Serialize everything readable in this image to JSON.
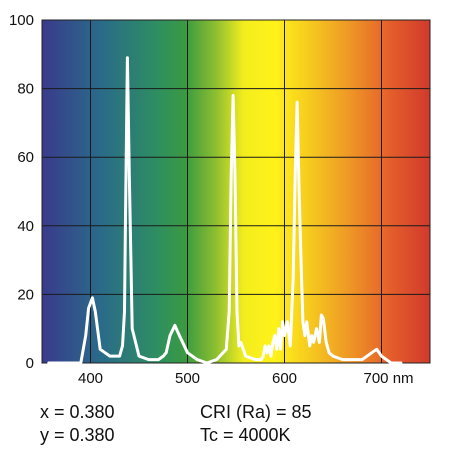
{
  "chart_data": {
    "type": "line",
    "title": "",
    "xlabel": "",
    "ylabel": "",
    "xlim": [
      350,
      750
    ],
    "ylim": [
      0,
      100
    ],
    "grid": true,
    "legend": "none",
    "x_ticks": [
      400,
      500,
      600,
      700
    ],
    "x_tick_labels": [
      "400",
      "500",
      "600",
      "700 nm"
    ],
    "y_ticks": [
      0,
      20,
      40,
      60,
      80,
      100
    ],
    "y_tick_labels": [
      "0",
      "20",
      "40",
      "60",
      "80",
      "100"
    ],
    "background": "visible-spectrum gradient",
    "spectrum_colors": [
      "#3a3a8c",
      "#2a6a8a",
      "#2e8f60",
      "#3a9a40",
      "#8fc030",
      "#f3ed1e",
      "#fff21a",
      "#f5c51f",
      "#ee9326",
      "#e45d2b",
      "#d03a2c"
    ],
    "line_color": "#ffffff",
    "series": [
      {
        "x": [
          357,
          390,
          395,
          398,
          402,
          405,
          410,
          420,
          430,
          433,
          435,
          436,
          438,
          440,
          443,
          450,
          460,
          470,
          475,
          478,
          482,
          487,
          490,
          500,
          510,
          520,
          530,
          540,
          543,
          545,
          547,
          549,
          551,
          553,
          555,
          560,
          570,
          576,
          578,
          580,
          582,
          584,
          586,
          588,
          590,
          592,
          594,
          596,
          598,
          600,
          603,
          606,
          609,
          611,
          613,
          615,
          617,
          619,
          621,
          623,
          626,
          628,
          630,
          633,
          636,
          638,
          640,
          643,
          646,
          650,
          660,
          670,
          680,
          690,
          695,
          700,
          710,
          720
        ],
        "y": [
          0,
          0,
          8,
          16,
          19,
          15,
          4,
          2,
          2,
          5,
          15,
          40,
          89,
          55,
          10,
          2,
          1,
          1,
          2,
          3,
          8,
          11,
          9,
          3,
          1,
          0,
          1,
          4,
          15,
          55,
          78,
          55,
          15,
          5,
          6,
          2,
          1,
          1,
          2,
          5,
          3,
          5,
          2,
          6,
          8,
          4,
          10,
          4,
          12,
          8,
          12,
          5,
          25,
          55,
          76,
          50,
          30,
          12,
          8,
          12,
          5,
          8,
          6,
          10,
          6,
          14,
          13,
          6,
          3,
          2,
          1,
          1,
          1,
          3,
          4,
          2,
          0,
          0
        ]
      }
    ],
    "annotations": {
      "x": "x = 0.380",
      "y": "y = 0.380",
      "cri": "CRI (Ra) = 85",
      "tc": "Tc = 4000K"
    }
  }
}
